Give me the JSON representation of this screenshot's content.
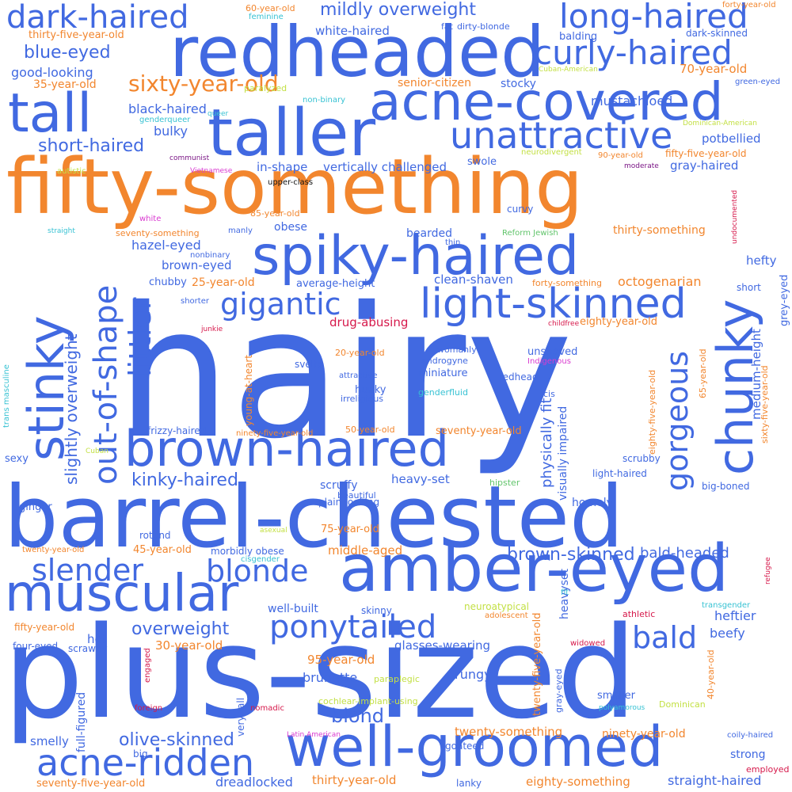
{
  "colors": {
    "blue": "#4169e1",
    "orange": "#f2862e",
    "cyan": "#37c2d3",
    "green": "#61c46b",
    "lime": "#c3e045",
    "crimson": "#d6194b",
    "magenta": "#d93bd0",
    "purple": "#7a1585",
    "black": "#111111"
  },
  "words": [
    {
      "text": "hairy",
      "color": "blue"
    },
    {
      "text": "plus-sized",
      "color": "blue"
    },
    {
      "text": "fifty-something",
      "color": "orange"
    },
    {
      "text": "barrel-chested",
      "color": "blue"
    },
    {
      "text": "redheaded",
      "color": "blue"
    },
    {
      "text": "taller",
      "color": "blue"
    },
    {
      "text": "amber-eyed",
      "color": "blue"
    },
    {
      "text": "well-groomed",
      "color": "blue"
    },
    {
      "text": "spiky-haired",
      "color": "blue"
    },
    {
      "text": "brown-haired",
      "color": "blue"
    },
    {
      "text": "acne-covered",
      "color": "blue"
    },
    {
      "text": "tall",
      "color": "blue"
    },
    {
      "text": "stinky",
      "color": "blue"
    },
    {
      "text": "chunky",
      "color": "blue"
    },
    {
      "text": "muscular",
      "color": "blue"
    },
    {
      "text": "light-skinned",
      "color": "blue"
    },
    {
      "text": "unattractive",
      "color": "blue"
    },
    {
      "text": "dark-haired",
      "color": "blue"
    },
    {
      "text": "long-haired",
      "color": "blue"
    },
    {
      "text": "curly-haired",
      "color": "blue"
    },
    {
      "text": "acne-ridden",
      "color": "blue"
    },
    {
      "text": "out-of-shape",
      "color": "blue"
    },
    {
      "text": "gorgeous",
      "color": "blue"
    },
    {
      "text": "ponytailed",
      "color": "blue"
    },
    {
      "text": "gigantic",
      "color": "blue"
    },
    {
      "text": "littler",
      "color": "blue"
    },
    {
      "text": "slender",
      "color": "blue"
    },
    {
      "text": "blonde",
      "color": "blue"
    },
    {
      "text": "bald",
      "color": "blue"
    },
    {
      "text": "sixty-year-old",
      "color": "orange"
    },
    {
      "text": "slightly overweight",
      "color": "blue"
    },
    {
      "text": "blue-eyed",
      "color": "blue"
    },
    {
      "text": "short-haired",
      "color": "blue"
    },
    {
      "text": "mildly overweight",
      "color": "blue"
    },
    {
      "text": "kinky-haired",
      "color": "blue"
    },
    {
      "text": "brown-skinned",
      "color": "blue"
    },
    {
      "text": "olive-skinned",
      "color": "blue"
    },
    {
      "text": "blond",
      "color": "blue"
    },
    {
      "text": "overweight",
      "color": "blue"
    },
    {
      "text": "physically fit",
      "color": "blue"
    },
    {
      "text": "in-shape",
      "color": "blue"
    },
    {
      "text": "vertically challenged",
      "color": "blue"
    },
    {
      "text": "good-looking",
      "color": "blue"
    },
    {
      "text": "black-haired",
      "color": "blue"
    },
    {
      "text": "white-haired",
      "color": "blue"
    },
    {
      "text": "bulky",
      "color": "blue"
    },
    {
      "text": "hazel-eyed",
      "color": "blue"
    },
    {
      "text": "brown-eyed",
      "color": "blue"
    },
    {
      "text": "octogenarian",
      "color": "orange"
    },
    {
      "text": "mustachioed",
      "color": "blue"
    },
    {
      "text": "potbellied",
      "color": "blue"
    },
    {
      "text": "gray-haired",
      "color": "blue"
    },
    {
      "text": "eighty-year-old",
      "color": "orange"
    },
    {
      "text": "bald-headed",
      "color": "blue"
    },
    {
      "text": "heftier",
      "color": "blue"
    },
    {
      "text": "beefy",
      "color": "blue"
    },
    {
      "text": "hefty",
      "color": "blue"
    },
    {
      "text": "medium-height",
      "color": "blue"
    },
    {
      "text": "grey-eyed",
      "color": "blue"
    },
    {
      "text": "thirty-something",
      "color": "orange"
    },
    {
      "text": "clean-shaven",
      "color": "blue"
    },
    {
      "text": "average-height",
      "color": "blue"
    },
    {
      "text": "drug-abusing",
      "color": "crimson"
    },
    {
      "text": "bearded",
      "color": "blue"
    },
    {
      "text": "obese",
      "color": "blue"
    },
    {
      "text": "chubby",
      "color": "blue"
    },
    {
      "text": "25-year-old",
      "color": "orange"
    },
    {
      "text": "35-year-old",
      "color": "orange"
    },
    {
      "text": "70-year-old",
      "color": "orange"
    },
    {
      "text": "60-year-old",
      "color": "orange"
    },
    {
      "text": "thirty-five-year-old",
      "color": "orange"
    },
    {
      "text": "fifty-five-year-old",
      "color": "orange"
    },
    {
      "text": "85-year-old",
      "color": "orange"
    },
    {
      "text": "90-year-old",
      "color": "orange"
    },
    {
      "text": "20-year-old",
      "color": "orange"
    },
    {
      "text": "50-year-old",
      "color": "orange"
    },
    {
      "text": "seventy-year-old",
      "color": "orange"
    },
    {
      "text": "ninety-five-year-old",
      "color": "orange"
    },
    {
      "text": "45-year-old",
      "color": "orange"
    },
    {
      "text": "75-year-old",
      "color": "orange"
    },
    {
      "text": "30-year-old",
      "color": "orange"
    },
    {
      "text": "95-year-old",
      "color": "orange"
    },
    {
      "text": "fifty-year-old",
      "color": "orange"
    },
    {
      "text": "twenty-year-old",
      "color": "orange"
    },
    {
      "text": "middle-aged",
      "color": "orange"
    },
    {
      "text": "twenty-something",
      "color": "orange"
    },
    {
      "text": "ninety-year-old",
      "color": "orange"
    },
    {
      "text": "eighty-something",
      "color": "orange"
    },
    {
      "text": "thirty-year-old",
      "color": "orange"
    },
    {
      "text": "seventy-five-year-old",
      "color": "orange"
    },
    {
      "text": "forty-something",
      "color": "orange"
    },
    {
      "text": "forty-year-old",
      "color": "orange"
    },
    {
      "text": "seventy-something",
      "color": "orange"
    },
    {
      "text": "senior-citizen",
      "color": "orange"
    },
    {
      "text": "young-at-heart",
      "color": "orange"
    },
    {
      "text": "eighty-five-year-old",
      "color": "orange"
    },
    {
      "text": "sixty-five-year-old",
      "color": "orange"
    },
    {
      "text": "65-year-old",
      "color": "orange"
    },
    {
      "text": "twenty-five-year-old",
      "color": "orange"
    },
    {
      "text": "40-year-old",
      "color": "orange"
    },
    {
      "text": "adolescent",
      "color": "orange"
    },
    {
      "text": "fat",
      "color": "blue"
    },
    {
      "text": "dirty-blonde",
      "color": "blue"
    },
    {
      "text": "balding",
      "color": "blue"
    },
    {
      "text": "stocky",
      "color": "blue"
    },
    {
      "text": "dark-skinned",
      "color": "blue"
    },
    {
      "text": "green-eyed",
      "color": "blue"
    },
    {
      "text": "swole",
      "color": "blue"
    },
    {
      "text": "curvy",
      "color": "blue"
    },
    {
      "text": "thin",
      "color": "blue"
    },
    {
      "text": "short",
      "color": "blue"
    },
    {
      "text": "shorter",
      "color": "blue"
    },
    {
      "text": "unshaved",
      "color": "blue"
    },
    {
      "text": "redhead",
      "color": "blue"
    },
    {
      "text": "miniature",
      "color": "blue"
    },
    {
      "text": "svelte",
      "color": "blue"
    },
    {
      "text": "hunky",
      "color": "blue"
    },
    {
      "text": "frizzy-haired",
      "color": "blue"
    },
    {
      "text": "sexy",
      "color": "blue"
    },
    {
      "text": "ginger",
      "color": "blue"
    },
    {
      "text": "rotund",
      "color": "blue"
    },
    {
      "text": "morbidly obese",
      "color": "blue"
    },
    {
      "text": "scruffy",
      "color": "blue"
    },
    {
      "text": "beautiful",
      "color": "blue"
    },
    {
      "text": "plain-looking",
      "color": "blue"
    },
    {
      "text": "heavy-set",
      "color": "blue"
    },
    {
      "text": "visually impaired",
      "color": "blue"
    },
    {
      "text": "homely",
      "color": "blue"
    },
    {
      "text": "big-boned",
      "color": "blue"
    },
    {
      "text": "light-haired",
      "color": "blue"
    },
    {
      "text": "scrubby",
      "color": "blue"
    },
    {
      "text": "well-built",
      "color": "blue"
    },
    {
      "text": "skinny",
      "color": "blue"
    },
    {
      "text": "heavyset",
      "color": "blue"
    },
    {
      "text": "hot",
      "color": "blue"
    },
    {
      "text": "scrawny",
      "color": "blue"
    },
    {
      "text": "four-eyed",
      "color": "blue"
    },
    {
      "text": "full-figured",
      "color": "blue"
    },
    {
      "text": "glasses-wearing",
      "color": "blue"
    },
    {
      "text": "brunette",
      "color": "blue"
    },
    {
      "text": "grungy",
      "color": "blue"
    },
    {
      "text": "very tall",
      "color": "blue"
    },
    {
      "text": "gray-eyed",
      "color": "blue"
    },
    {
      "text": "smaller",
      "color": "blue"
    },
    {
      "text": "smelly",
      "color": "blue"
    },
    {
      "text": "big",
      "color": "blue"
    },
    {
      "text": "goateed",
      "color": "blue"
    },
    {
      "text": "dreadlocked",
      "color": "blue"
    },
    {
      "text": "lanky",
      "color": "blue"
    },
    {
      "text": "strong",
      "color": "blue"
    },
    {
      "text": "straight-haired",
      "color": "blue"
    },
    {
      "text": "coily-haired",
      "color": "blue"
    },
    {
      "text": "irreligious",
      "color": "blue"
    },
    {
      "text": "cis",
      "color": "blue"
    },
    {
      "text": "androgyne",
      "color": "blue"
    },
    {
      "text": "attractive",
      "color": "blue"
    },
    {
      "text": "womanly",
      "color": "blue"
    },
    {
      "text": "upper-class",
      "color": "black"
    },
    {
      "text": "feminine",
      "color": "cyan"
    },
    {
      "text": "genderqueer",
      "color": "cyan"
    },
    {
      "text": "queer",
      "color": "cyan"
    },
    {
      "text": "non-binary",
      "color": "cyan"
    },
    {
      "text": "nonbinary",
      "color": "blue"
    },
    {
      "text": "manly",
      "color": "blue"
    },
    {
      "text": "trans masculine",
      "color": "cyan"
    },
    {
      "text": "genderfluid",
      "color": "cyan"
    },
    {
      "text": "cisgender",
      "color": "cyan"
    },
    {
      "text": "transgender",
      "color": "cyan"
    },
    {
      "text": "straight",
      "color": "cyan"
    },
    {
      "text": "hipster",
      "color": "green"
    },
    {
      "text": "Reform Jewish",
      "color": "green"
    },
    {
      "text": "paralyzed",
      "color": "lime"
    },
    {
      "text": "Cuban-American",
      "color": "lime"
    },
    {
      "text": "Dominican-American",
      "color": "lime"
    },
    {
      "text": "neurodivergent",
      "color": "lime"
    },
    {
      "text": "autistic",
      "color": "lime"
    },
    {
      "text": "Cuban",
      "color": "lime"
    },
    {
      "text": "asexual",
      "color": "lime"
    },
    {
      "text": "neuroatypical",
      "color": "lime"
    },
    {
      "text": "paraplegic",
      "color": "lime"
    },
    {
      "text": "cochlear-implant-using",
      "color": "lime"
    },
    {
      "text": "Dominican",
      "color": "lime"
    },
    {
      "text": "polyamorous",
      "color": "cyan"
    },
    {
      "text": "fit",
      "color": "cyan"
    },
    {
      "text": "Vietnamese",
      "color": "magenta"
    },
    {
      "text": "white",
      "color": "magenta"
    },
    {
      "text": "Indigenous",
      "color": "magenta"
    },
    {
      "text": "communist",
      "color": "purple"
    },
    {
      "text": "moderate",
      "color": "purple"
    },
    {
      "text": "undocumented",
      "color": "crimson"
    },
    {
      "text": "junkie",
      "color": "crimson"
    },
    {
      "text": "childfree",
      "color": "crimson"
    },
    {
      "text": "refugee",
      "color": "crimson"
    },
    {
      "text": "athletic",
      "color": "crimson"
    },
    {
      "text": "widowed",
      "color": "crimson"
    },
    {
      "text": "engaged",
      "color": "crimson"
    },
    {
      "text": "foreign",
      "color": "crimson"
    },
    {
      "text": "nomadic",
      "color": "crimson"
    },
    {
      "text": "Latin American",
      "color": "magenta"
    },
    {
      "text": "employed",
      "color": "crimson"
    }
  ]
}
